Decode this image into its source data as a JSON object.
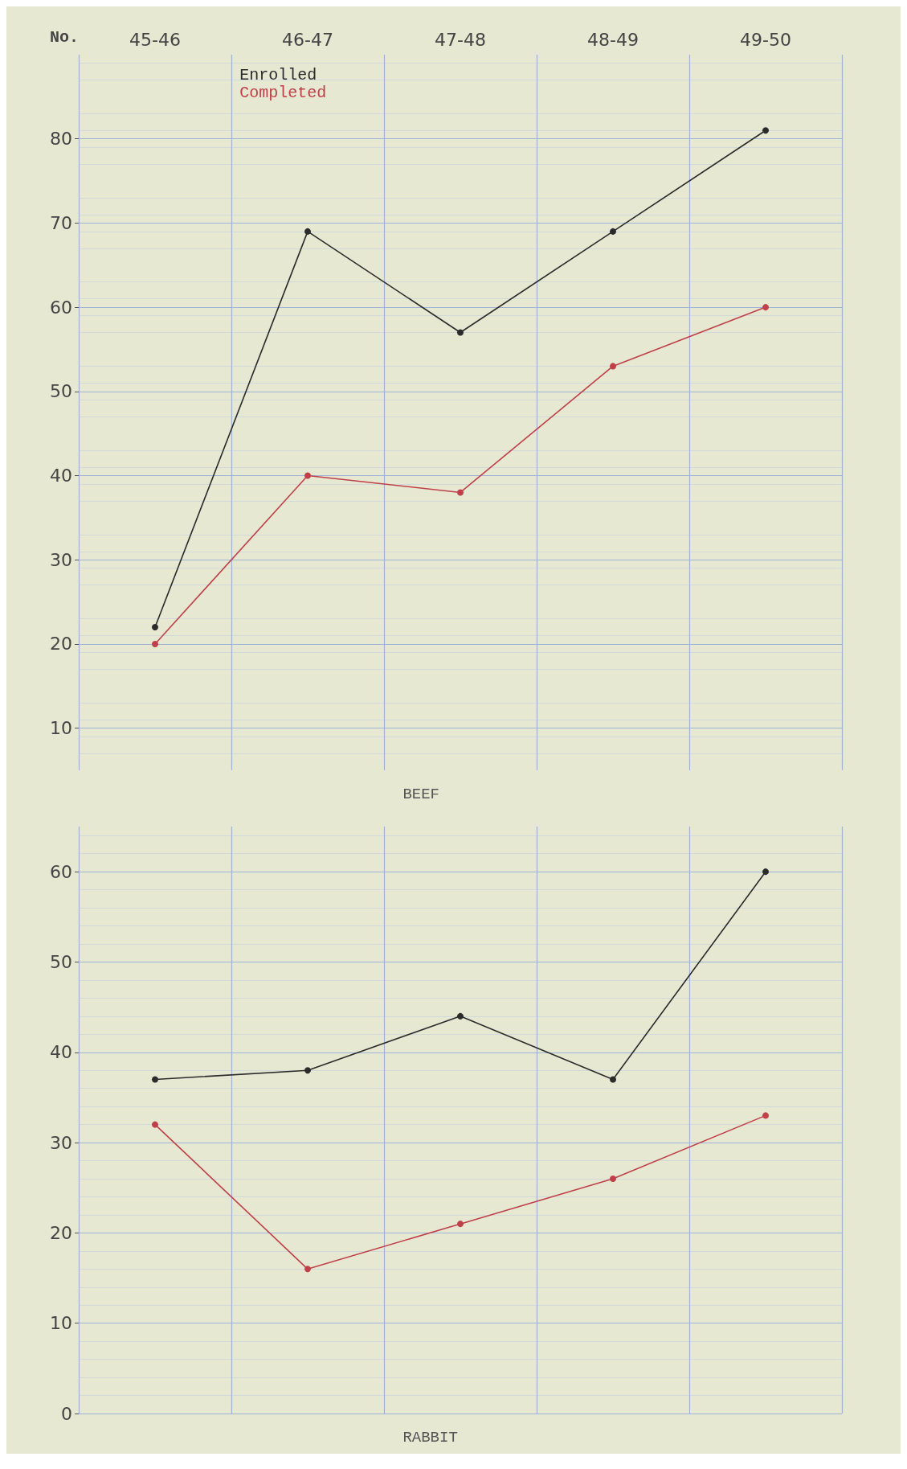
{
  "chart_data": [
    {
      "type": "line",
      "title": "BEEF",
      "ylabel": "No.",
      "categories": [
        "45-46",
        "46-47",
        "47-48",
        "48-49",
        "49-50"
      ],
      "series": [
        {
          "name": "Enrolled",
          "color": "#2b2b2b",
          "values": [
            22,
            69,
            57,
            69,
            81
          ]
        },
        {
          "name": "Completed",
          "color": "#c0404a",
          "values": [
            20,
            40,
            38,
            53,
            60
          ]
        }
      ],
      "ylim": [
        5,
        90
      ],
      "yticks": [
        10,
        20,
        30,
        40,
        50,
        60,
        70,
        80
      ],
      "grid": true,
      "legend": "top left",
      "marker": "circle",
      "line_style": "solid"
    },
    {
      "type": "line",
      "title": "RABBIT",
      "categories": [
        null,
        null,
        null,
        null,
        null
      ],
      "series": [
        {
          "color": "#2b2b2b",
          "values": [
            37,
            38,
            44,
            37,
            60
          ]
        },
        {
          "color": "#c0404a",
          "values": [
            32,
            16,
            21,
            26,
            33
          ]
        }
      ],
      "ylim": [
        0,
        65
      ],
      "yticks": [
        0,
        10,
        20,
        30,
        40,
        50,
        60
      ],
      "grid": true,
      "legend": false,
      "marker": "circle",
      "line_style": "solid",
      "tick_labels": "y"
    }
  ]
}
